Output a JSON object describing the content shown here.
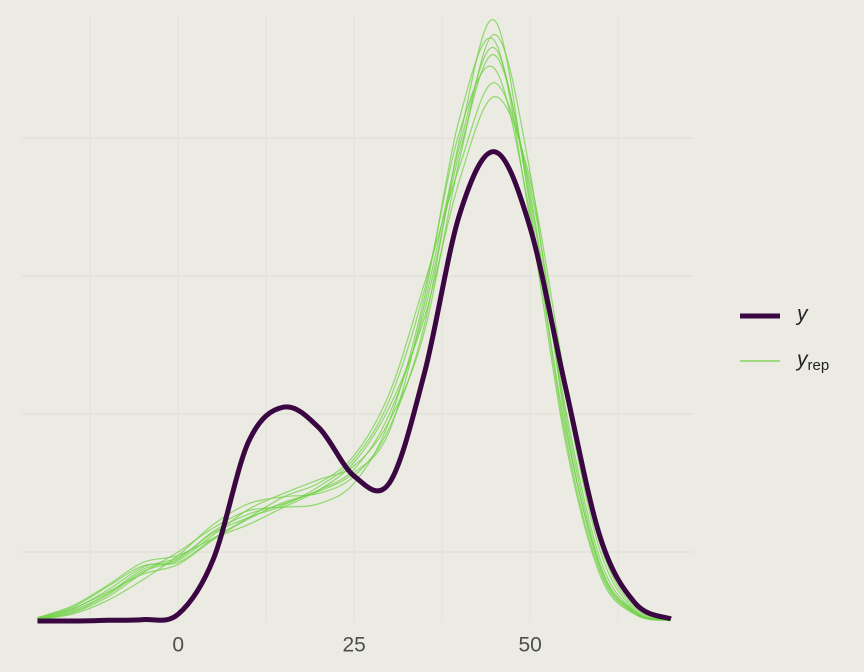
{
  "chart_data": {
    "type": "density_overlay",
    "x": [
      -20,
      -15,
      -10,
      -5,
      0,
      5,
      10,
      15,
      20,
      25,
      30,
      35,
      40,
      45,
      50,
      55,
      60,
      65,
      70
    ],
    "xlim": [
      -22.2,
      73
    ],
    "xticks": [
      0,
      25,
      50
    ],
    "xgrid_minor": [
      -12.5,
      12.5,
      37.5,
      62.5
    ],
    "ylim": [
      0,
      0.09
    ],
    "ygrid": [
      0.01,
      0.03,
      0.05,
      0.07
    ],
    "grid": true,
    "legend": "right",
    "series": [
      {
        "name": "y",
        "color": "#3a0742",
        "values": [
          0,
          0,
          0.0001,
          0.0002,
          0.001,
          0.009,
          0.026,
          0.031,
          0.028,
          0.021,
          0.02,
          0.036,
          0.059,
          0.068,
          0.057,
          0.034,
          0.012,
          0.0025,
          0.0003
        ]
      },
      {
        "name": "y",
        "subscript": "rep",
        "color": "#6fd144",
        "draws": [
          [
            0.0003,
            0.0015,
            0.004,
            0.0075,
            0.009,
            0.013,
            0.0155,
            0.017,
            0.019,
            0.022,
            0.03,
            0.045,
            0.068,
            0.082,
            0.062,
            0.03,
            0.008,
            0.0012,
            0.0001
          ],
          [
            0.0002,
            0.001,
            0.003,
            0.006,
            0.0095,
            0.014,
            0.017,
            0.018,
            0.0185,
            0.021,
            0.028,
            0.043,
            0.07,
            0.087,
            0.06,
            0.027,
            0.007,
            0.001,
            0.0001
          ],
          [
            0.0004,
            0.002,
            0.005,
            0.008,
            0.0085,
            0.012,
            0.015,
            0.018,
            0.02,
            0.024,
            0.033,
            0.049,
            0.066,
            0.078,
            0.063,
            0.033,
            0.01,
            0.0015,
            0.0002
          ],
          [
            0.0003,
            0.0012,
            0.0035,
            0.007,
            0.01,
            0.0135,
            0.016,
            0.0165,
            0.017,
            0.02,
            0.029,
            0.047,
            0.073,
            0.084,
            0.058,
            0.026,
            0.0065,
            0.0009,
            0.0001
          ],
          [
            0.0005,
            0.0022,
            0.0052,
            0.0085,
            0.0095,
            0.012,
            0.014,
            0.0165,
            0.019,
            0.023,
            0.031,
            0.044,
            0.064,
            0.076,
            0.064,
            0.035,
            0.011,
            0.0018,
            0.0002
          ],
          [
            0.0002,
            0.0013,
            0.0038,
            0.0072,
            0.0088,
            0.0125,
            0.0162,
            0.0185,
            0.0205,
            0.0225,
            0.029,
            0.042,
            0.067,
            0.085,
            0.065,
            0.029,
            0.0075,
            0.0011,
            0.0001
          ],
          [
            0.0003,
            0.0017,
            0.0045,
            0.0078,
            0.0092,
            0.0128,
            0.015,
            0.0168,
            0.0195,
            0.0235,
            0.032,
            0.048,
            0.071,
            0.08,
            0.059,
            0.028,
            0.0078,
            0.0012,
            0.0001
          ],
          [
            0.0004,
            0.0018,
            0.0042,
            0.0068,
            0.0082,
            0.0118,
            0.0148,
            0.0172,
            0.0188,
            0.0215,
            0.0275,
            0.046,
            0.069,
            0.083,
            0.061,
            0.031,
            0.0088,
            0.0013,
            0.0001
          ]
        ]
      }
    ]
  }
}
